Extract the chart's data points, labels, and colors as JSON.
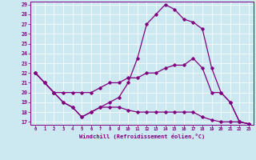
{
  "xlabel": "Windchill (Refroidissement éolien,°C)",
  "background_color": "#cce8f0",
  "line_color": "#800080",
  "xlim": [
    -0.5,
    23.5
  ],
  "ylim": [
    16.7,
    29.3
  ],
  "xticks": [
    0,
    1,
    2,
    3,
    4,
    5,
    6,
    7,
    8,
    9,
    10,
    11,
    12,
    13,
    14,
    15,
    16,
    17,
    18,
    19,
    20,
    21,
    22,
    23
  ],
  "yticks": [
    17,
    18,
    19,
    20,
    21,
    22,
    23,
    24,
    25,
    26,
    27,
    28,
    29
  ],
  "curve_peak_x": [
    0,
    1,
    2,
    3,
    4,
    5,
    6,
    7,
    8,
    9,
    10,
    11,
    12,
    13,
    14,
    15,
    16,
    17,
    18,
    19,
    20,
    21,
    22,
    23
  ],
  "curve_peak_y": [
    22,
    21,
    20,
    19,
    18.5,
    17.5,
    18,
    18.5,
    19,
    19.5,
    21,
    23.5,
    27,
    28,
    29,
    28.5,
    27.5,
    27.2,
    26.5,
    22.5,
    20,
    19,
    17,
    16.8
  ],
  "curve_mid_x": [
    0,
    1,
    2,
    3,
    4,
    5,
    6,
    7,
    8,
    9,
    10,
    11,
    12,
    13,
    14,
    15,
    16,
    17,
    18,
    19,
    20,
    21,
    22,
    23
  ],
  "curve_mid_y": [
    22,
    21,
    20,
    20,
    20,
    20,
    20,
    20.5,
    21,
    21,
    21.5,
    21.5,
    22,
    22,
    22.5,
    22.8,
    22.8,
    23.5,
    22.5,
    20,
    20,
    19,
    17,
    16.8
  ],
  "curve_low_x": [
    0,
    1,
    2,
    3,
    4,
    5,
    6,
    7,
    8,
    9,
    10,
    11,
    12,
    13,
    14,
    15,
    16,
    17,
    18,
    19,
    20,
    21,
    22,
    23
  ],
  "curve_low_y": [
    22,
    21,
    20,
    19,
    18.5,
    17.5,
    18,
    18.5,
    18.5,
    18.5,
    18.2,
    18,
    18,
    18,
    18,
    18,
    18,
    18,
    17.5,
    17.2,
    17,
    17,
    17,
    16.8
  ]
}
